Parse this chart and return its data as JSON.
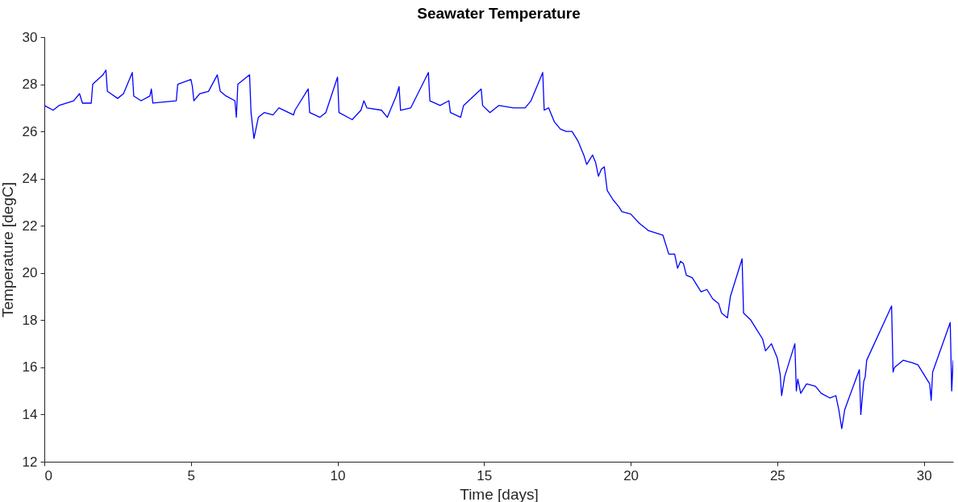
{
  "chart_data": {
    "type": "line",
    "title": "Seawater Temperature",
    "xlabel": "Time [days]",
    "ylabel": "Temperature [degC]",
    "xlim": [
      0,
      31
    ],
    "xticks": [
      0,
      5,
      10,
      15,
      20,
      25,
      30
    ],
    "ylim": [
      12,
      30
    ],
    "yticks": [
      12,
      14,
      16,
      18,
      20,
      22,
      24,
      26,
      28,
      30
    ],
    "grid": false,
    "marker": "none",
    "line_style": "solid",
    "series": [
      {
        "color": "#0000ff",
        "x": [
          0,
          0.3,
          0.5,
          1.0,
          1.2,
          1.3,
          1.6,
          1.65,
          2.0,
          2.1,
          2.15,
          2.5,
          2.7,
          3.0,
          3.05,
          3.3,
          3.6,
          3.65,
          3.7,
          4.5,
          4.55,
          5.0,
          5.05,
          5.1,
          5.3,
          5.6,
          5.9,
          6.0,
          6.2,
          6.5,
          6.55,
          6.6,
          6.9,
          7.0,
          7.05,
          7.15,
          7.3,
          7.5,
          7.8,
          8.0,
          8.5,
          8.55,
          9.0,
          9.05,
          9.4,
          9.6,
          10.0,
          10.05,
          10.5,
          10.8,
          10.9,
          11.0,
          11.5,
          11.7,
          12.0,
          12.1,
          12.15,
          12.5,
          13.1,
          13.15,
          13.5,
          13.8,
          13.85,
          14.2,
          14.3,
          14.9,
          14.95,
          15.2,
          15.5,
          16.0,
          16.4,
          16.6,
          17.0,
          17.05,
          17.2,
          17.4,
          17.6,
          17.8,
          18.0,
          18.2,
          18.4,
          18.5,
          18.7,
          18.8,
          18.9,
          19.0,
          19.1,
          19.2,
          19.4,
          19.6,
          19.7,
          20.0,
          20.3,
          20.6,
          21.1,
          21.3,
          21.5,
          21.6,
          21.7,
          21.8,
          21.9,
          22.1,
          22.4,
          22.6,
          22.8,
          23.0,
          23.1,
          23.3,
          23.4,
          23.8,
          23.85,
          24.1,
          24.3,
          24.5,
          24.6,
          24.8,
          25.0,
          25.1,
          25.15,
          25.25,
          25.6,
          25.65,
          25.7,
          25.8,
          26.0,
          26.3,
          26.5,
          26.8,
          27.0,
          27.1,
          27.2,
          27.3,
          27.8,
          27.85,
          27.95,
          28.0,
          28.05,
          28.9,
          28.95,
          29.0,
          29.3,
          29.6,
          29.8,
          30.0,
          30.2,
          30.25,
          30.3,
          30.9,
          30.95,
          31.0
        ],
        "values": [
          27.1,
          26.9,
          27.1,
          27.3,
          27.6,
          27.2,
          27.2,
          28.0,
          28.4,
          28.6,
          27.7,
          27.4,
          27.6,
          28.5,
          27.5,
          27.3,
          27.5,
          27.8,
          27.2,
          27.3,
          28.0,
          28.2,
          27.9,
          27.3,
          27.6,
          27.7,
          28.4,
          27.7,
          27.5,
          27.3,
          26.6,
          28.0,
          28.3,
          28.4,
          26.8,
          25.7,
          26.6,
          26.8,
          26.7,
          27.0,
          26.7,
          26.9,
          27.8,
          26.8,
          26.6,
          26.8,
          28.3,
          26.8,
          26.5,
          26.9,
          27.3,
          27.0,
          26.9,
          26.6,
          27.5,
          27.9,
          26.9,
          27.0,
          28.5,
          27.3,
          27.1,
          27.3,
          26.8,
          26.6,
          27.1,
          27.8,
          27.1,
          26.8,
          27.1,
          27.0,
          27.0,
          27.3,
          28.5,
          26.9,
          27.0,
          26.4,
          26.1,
          26.0,
          26.0,
          25.6,
          25.0,
          24.6,
          25.0,
          24.7,
          24.1,
          24.4,
          24.5,
          23.5,
          23.1,
          22.8,
          22.6,
          22.5,
          22.1,
          21.8,
          21.6,
          20.8,
          20.8,
          20.2,
          20.5,
          20.4,
          19.9,
          19.8,
          19.2,
          19.3,
          18.9,
          18.7,
          18.3,
          18.1,
          19.0,
          20.6,
          18.3,
          18.0,
          17.6,
          17.2,
          16.7,
          17.0,
          16.4,
          15.7,
          14.8,
          15.6,
          17.0,
          15.0,
          15.5,
          14.9,
          15.3,
          15.2,
          14.9,
          14.7,
          14.8,
          14.2,
          13.4,
          14.2,
          15.9,
          14.0,
          15.4,
          15.6,
          16.3,
          18.6,
          15.8,
          16.0,
          16.3,
          16.2,
          16.1,
          15.7,
          15.3,
          14.6,
          15.8,
          17.9,
          15.0,
          16.3
        ]
      }
    ]
  }
}
